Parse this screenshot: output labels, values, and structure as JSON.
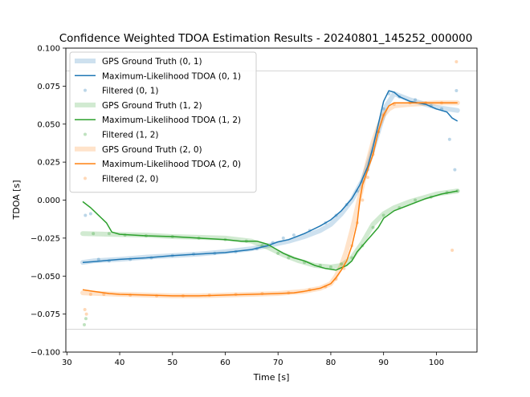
{
  "chart_data": {
    "type": "line",
    "title": "Confidence Weighted TDOA Estimation Results - 20240801_145252_000000",
    "xlabel": "Time [s]",
    "ylabel": "TDOA [s]",
    "xlim": [
      29.8,
      107.7
    ],
    "ylim": [
      -0.1,
      0.1
    ],
    "xticks": [
      30,
      40,
      50,
      60,
      70,
      80,
      90,
      100
    ],
    "yticks": [
      -0.1,
      -0.075,
      -0.05,
      -0.025,
      0.0,
      0.025,
      0.05,
      0.075,
      0.1
    ],
    "xtick_labels": [
      "30",
      "40",
      "50",
      "60",
      "70",
      "80",
      "90",
      "100"
    ],
    "ytick_labels": [
      "−0.100",
      "−0.075",
      "−0.050",
      "−0.025",
      "0.000",
      "0.025",
      "0.050",
      "0.075",
      "0.100"
    ],
    "hlines": [
      {
        "y": 0.085,
        "color": "#d3d3d3"
      },
      {
        "y": -0.085,
        "color": "#d3d3d3"
      }
    ],
    "legend_position": "top-left",
    "grid": false,
    "series": [
      {
        "name": "GPS Ground Truth (0, 1)",
        "kind": "gt",
        "color": "#1f77b4",
        "x": [
          33,
          35,
          40,
          45,
          50,
          55,
          60,
          65,
          68,
          72,
          75,
          78,
          80,
          82,
          84,
          86,
          87.5,
          89,
          90.5,
          92,
          95,
          98,
          100,
          104
        ],
        "y": [
          -0.041,
          -0.04,
          -0.039,
          -0.0375,
          -0.0365,
          -0.0355,
          -0.034,
          -0.032,
          -0.03,
          -0.027,
          -0.024,
          -0.02,
          -0.016,
          -0.009,
          0.0,
          0.013,
          0.028,
          0.045,
          0.062,
          0.07,
          0.066,
          0.063,
          0.061,
          0.059
        ]
      },
      {
        "name": "Maximum-Likelihood TDOA (0, 1)",
        "kind": "ml",
        "color": "#1f77b4",
        "x": [
          33,
          35,
          40,
          45,
          50,
          55,
          60,
          65,
          68,
          70,
          72,
          75,
          78,
          80,
          82,
          84,
          85.5,
          87,
          88,
          89,
          90,
          91,
          92,
          93,
          95,
          98,
          100,
          102,
          103,
          104
        ],
        "y": [
          -0.041,
          -0.0405,
          -0.039,
          -0.038,
          -0.0365,
          -0.0355,
          -0.0345,
          -0.0325,
          -0.03,
          -0.0275,
          -0.026,
          -0.022,
          -0.017,
          -0.013,
          -0.007,
          0.001,
          0.01,
          0.022,
          0.035,
          0.05,
          0.065,
          0.072,
          0.071,
          0.068,
          0.065,
          0.063,
          0.06,
          0.058,
          0.054,
          0.052
        ]
      },
      {
        "name": "Filtered (0, 1)",
        "kind": "filtered",
        "color": "#1f77b4",
        "x": [
          33.5,
          34.5,
          36,
          38,
          42,
          46,
          50,
          54,
          58,
          62,
          66,
          69,
          71,
          73,
          76,
          79,
          81,
          83,
          85,
          86,
          87,
          88,
          89,
          90,
          91,
          93,
          96,
          99,
          101,
          102.5,
          103.5,
          103.8
        ],
        "y": [
          -0.01,
          -0.009,
          -0.039,
          -0.04,
          -0.039,
          -0.038,
          -0.0365,
          -0.0355,
          -0.035,
          -0.034,
          -0.032,
          -0.028,
          -0.025,
          -0.023,
          -0.02,
          -0.015,
          -0.01,
          -0.003,
          0.006,
          0.012,
          0.02,
          0.032,
          0.045,
          0.06,
          0.07,
          0.068,
          0.066,
          0.062,
          0.06,
          0.04,
          0.02,
          0.072
        ]
      },
      {
        "name": "GPS Ground Truth (1, 2)",
        "kind": "gt",
        "color": "#2ca02c",
        "x": [
          33,
          38,
          45,
          50,
          55,
          60,
          65,
          68,
          71,
          74,
          77,
          80,
          82,
          84,
          86,
          88,
          90,
          92,
          95,
          98,
          100,
          104
        ],
        "y": [
          -0.022,
          -0.0225,
          -0.023,
          -0.024,
          -0.0245,
          -0.025,
          -0.027,
          -0.031,
          -0.036,
          -0.04,
          -0.043,
          -0.044,
          -0.043,
          -0.038,
          -0.028,
          -0.016,
          -0.009,
          -0.005,
          -0.001,
          0.002,
          0.004,
          0.006
        ]
      },
      {
        "name": "Maximum-Likelihood TDOA (1, 2)",
        "kind": "ml",
        "color": "#2ca02c",
        "x": [
          33,
          34.5,
          36,
          37.5,
          38.5,
          40,
          45,
          50,
          55,
          60,
          63,
          66,
          68,
          70,
          71,
          73,
          75,
          77,
          79,
          81,
          83,
          84,
          85,
          86,
          87,
          88,
          89,
          90,
          92,
          95,
          98,
          101,
          104
        ],
        "y": [
          -0.001,
          -0.005,
          -0.01,
          -0.015,
          -0.021,
          -0.0225,
          -0.0235,
          -0.024,
          -0.025,
          -0.026,
          -0.027,
          -0.027,
          -0.029,
          -0.033,
          -0.035,
          -0.038,
          -0.04,
          -0.043,
          -0.045,
          -0.046,
          -0.043,
          -0.04,
          -0.034,
          -0.03,
          -0.026,
          -0.022,
          -0.018,
          -0.012,
          -0.007,
          -0.003,
          0.001,
          0.004,
          0.006
        ]
      },
      {
        "name": "Filtered (1, 2)",
        "kind": "filtered",
        "color": "#2ca02c",
        "x": [
          33.3,
          33.6,
          35,
          38,
          41,
          45,
          50,
          55,
          60,
          64,
          67,
          70,
          72,
          75,
          78,
          80,
          82,
          84,
          86,
          88,
          90,
          93,
          96,
          99,
          102,
          104
        ],
        "y": [
          -0.082,
          -0.078,
          -0.022,
          -0.022,
          -0.023,
          -0.0235,
          -0.024,
          -0.025,
          -0.026,
          -0.027,
          -0.03,
          -0.035,
          -0.038,
          -0.041,
          -0.043,
          -0.044,
          -0.042,
          -0.038,
          -0.03,
          -0.018,
          -0.01,
          -0.005,
          0.0,
          0.002,
          0.005,
          0.006
        ]
      },
      {
        "name": "GPS Ground Truth (2, 0)",
        "kind": "gt",
        "color": "#ff7f0e",
        "x": [
          33,
          36,
          40,
          45,
          50,
          55,
          60,
          65,
          70,
          75,
          78,
          80,
          81,
          82,
          83,
          84,
          85,
          86,
          87,
          88,
          89,
          90,
          91,
          92,
          95,
          100,
          104
        ],
        "y": [
          -0.061,
          -0.0615,
          -0.062,
          -0.0625,
          -0.063,
          -0.063,
          -0.0625,
          -0.062,
          -0.0615,
          -0.06,
          -0.058,
          -0.055,
          -0.05,
          -0.043,
          -0.033,
          -0.02,
          -0.005,
          0.01,
          0.025,
          0.038,
          0.048,
          0.056,
          0.06,
          0.062,
          0.063,
          0.064,
          0.064
        ]
      },
      {
        "name": "Maximum-Likelihood TDOA (2, 0)",
        "kind": "ml",
        "color": "#ff7f0e",
        "x": [
          33,
          35,
          38,
          40,
          45,
          50,
          55,
          60,
          65,
          70,
          73,
          75,
          78,
          80,
          81,
          82,
          83,
          84,
          85,
          85.5,
          86,
          87,
          88,
          89,
          90,
          91,
          92,
          95,
          100,
          104
        ],
        "y": [
          -0.059,
          -0.06,
          -0.0615,
          -0.062,
          -0.0625,
          -0.063,
          -0.063,
          -0.0625,
          -0.062,
          -0.0615,
          -0.061,
          -0.06,
          -0.058,
          -0.055,
          -0.051,
          -0.046,
          -0.04,
          -0.03,
          -0.015,
          0.0,
          0.01,
          0.02,
          0.03,
          0.045,
          0.056,
          0.062,
          0.064,
          0.064,
          0.064,
          0.064
        ]
      },
      {
        "name": "Filtered (2, 0)",
        "kind": "filtered",
        "color": "#ff7f0e",
        "x": [
          33.4,
          33.7,
          34.5,
          37,
          42,
          47,
          52,
          57,
          62,
          67,
          72,
          76,
          79,
          81,
          82.5,
          84,
          85,
          86,
          87,
          88,
          89,
          90,
          92,
          95,
          98,
          101,
          103,
          103.8
        ],
        "y": [
          -0.072,
          -0.075,
          -0.062,
          -0.062,
          -0.0625,
          -0.063,
          -0.063,
          -0.0625,
          -0.062,
          -0.0615,
          -0.061,
          -0.059,
          -0.057,
          -0.052,
          -0.045,
          -0.03,
          -0.015,
          0.0,
          0.015,
          0.03,
          0.045,
          0.056,
          0.063,
          0.064,
          0.064,
          0.064,
          -0.033,
          0.091
        ]
      }
    ]
  }
}
